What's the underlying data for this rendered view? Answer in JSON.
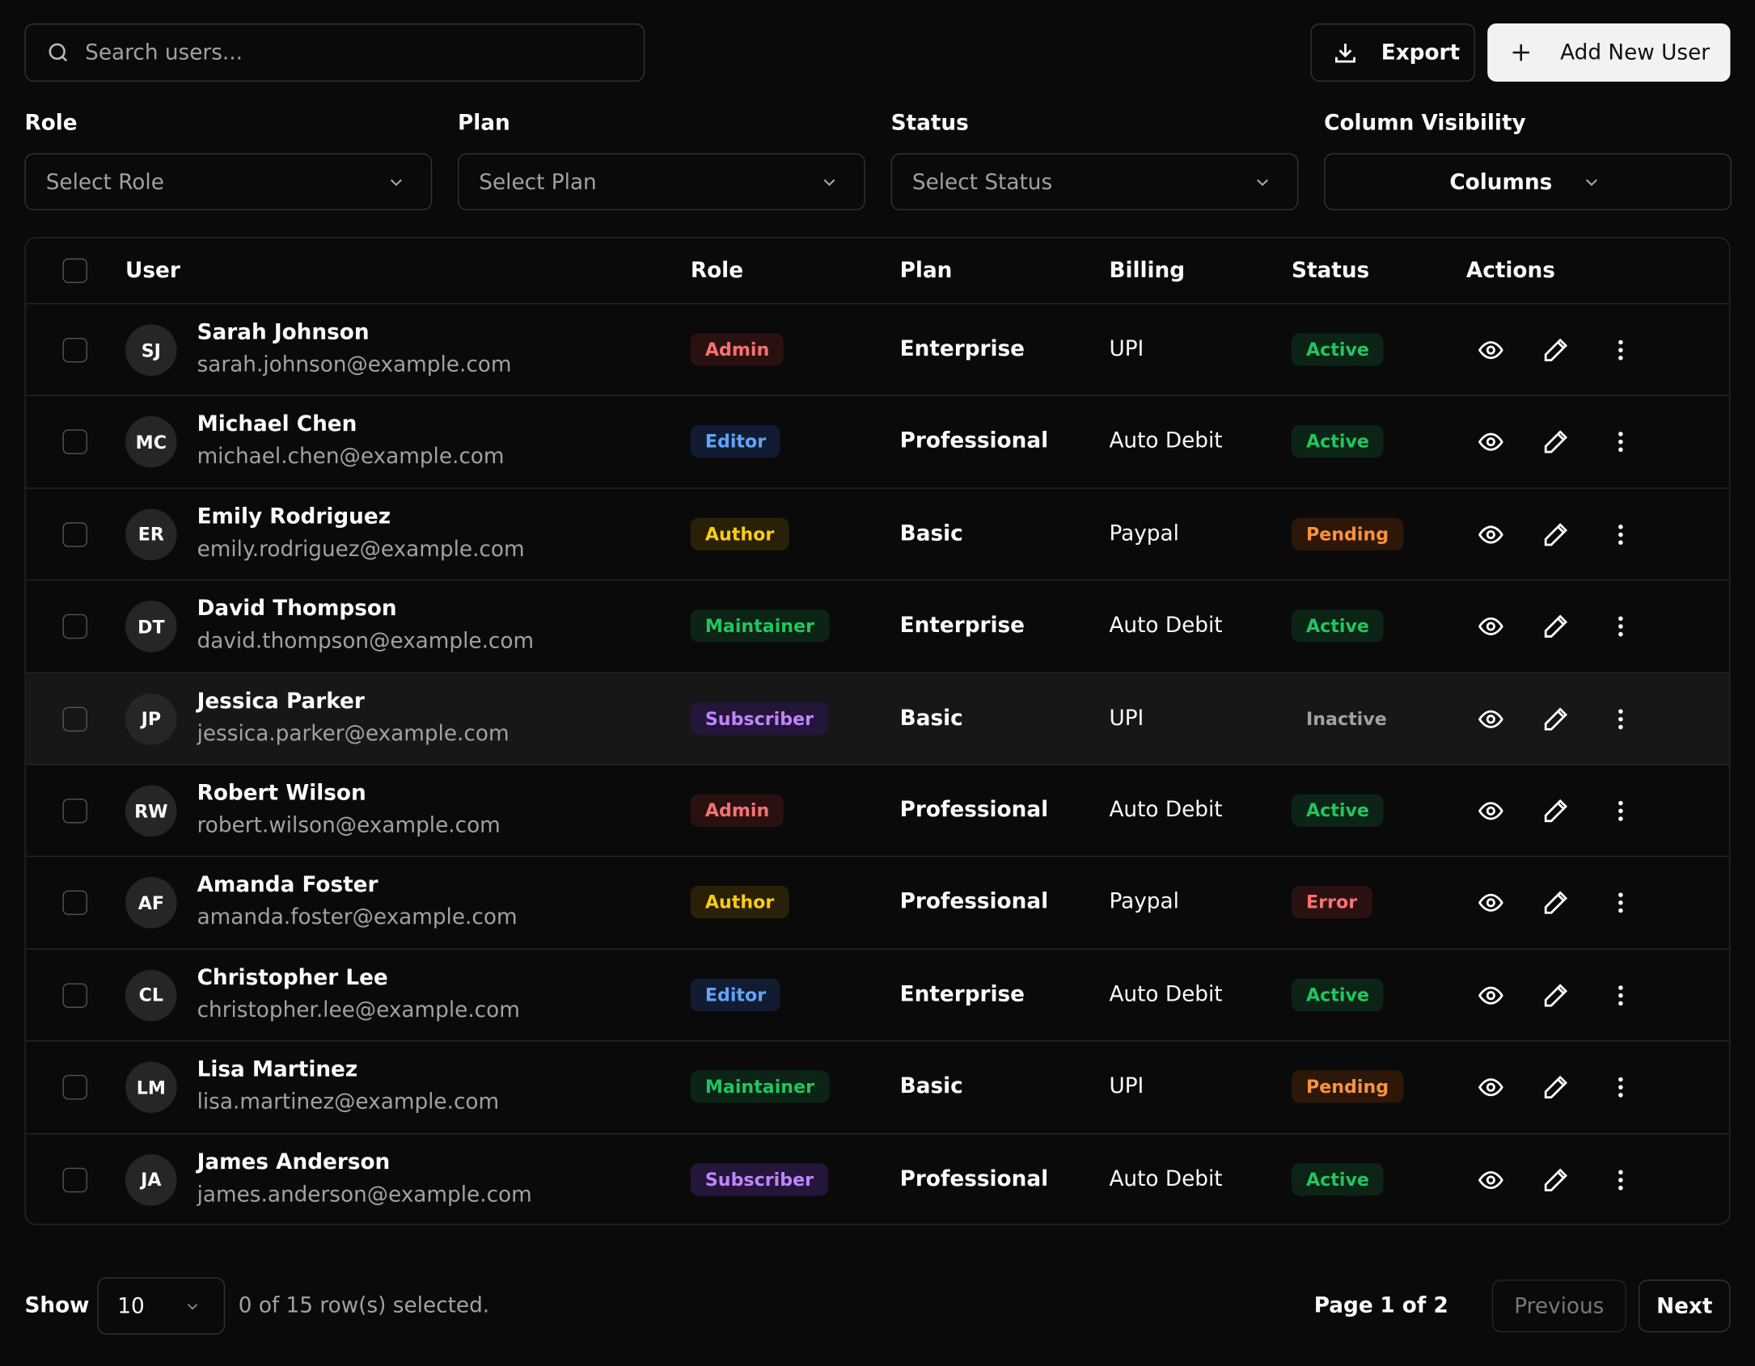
{
  "toolbar": {
    "search_placeholder": "Search users...",
    "export": "Export",
    "add_user": "Add New User"
  },
  "filters": [
    {
      "label": "Role",
      "placeholder": "Select Role"
    },
    {
      "label": "Plan",
      "placeholder": "Select Plan"
    },
    {
      "label": "Status",
      "placeholder": "Select Status"
    },
    {
      "label": "Column Visibility",
      "placeholder": "Columns"
    }
  ],
  "table": {
    "headers": [
      "User",
      "Role",
      "Plan",
      "Billing",
      "Status",
      "Actions"
    ],
    "rows": [
      {
        "initials": "SJ",
        "name": "Sarah Johnson",
        "email": "sarah.johnson@example.com",
        "role": "Admin",
        "plan": "Enterprise",
        "billing": "UPI",
        "status": "Active"
      },
      {
        "initials": "MC",
        "name": "Michael Chen",
        "email": "michael.chen@example.com",
        "role": "Editor",
        "plan": "Professional",
        "billing": "Auto Debit",
        "status": "Active"
      },
      {
        "initials": "ER",
        "name": "Emily Rodriguez",
        "email": "emily.rodriguez@example.com",
        "role": "Author",
        "plan": "Basic",
        "billing": "Paypal",
        "status": "Pending"
      },
      {
        "initials": "DT",
        "name": "David Thompson",
        "email": "david.thompson@example.com",
        "role": "Maintainer",
        "plan": "Enterprise",
        "billing": "Auto Debit",
        "status": "Active"
      },
      {
        "initials": "JP",
        "name": "Jessica Parker",
        "email": "jessica.parker@example.com",
        "role": "Subscriber",
        "plan": "Basic",
        "billing": "UPI",
        "status": "Inactive"
      },
      {
        "initials": "RW",
        "name": "Robert Wilson",
        "email": "robert.wilson@example.com",
        "role": "Admin",
        "plan": "Professional",
        "billing": "Auto Debit",
        "status": "Active"
      },
      {
        "initials": "AF",
        "name": "Amanda Foster",
        "email": "amanda.foster@example.com",
        "role": "Author",
        "plan": "Professional",
        "billing": "Paypal",
        "status": "Error"
      },
      {
        "initials": "CL",
        "name": "Christopher Lee",
        "email": "christopher.lee@example.com",
        "role": "Editor",
        "plan": "Enterprise",
        "billing": "Auto Debit",
        "status": "Active"
      },
      {
        "initials": "LM",
        "name": "Lisa Martinez",
        "email": "lisa.martinez@example.com",
        "role": "Maintainer",
        "plan": "Basic",
        "billing": "UPI",
        "status": "Pending"
      },
      {
        "initials": "JA",
        "name": "James Anderson",
        "email": "james.anderson@example.com",
        "role": "Subscriber",
        "plan": "Professional",
        "billing": "Auto Debit",
        "status": "Active"
      }
    ]
  },
  "footer": {
    "show": "Show",
    "page_size": "10",
    "selection": "0 of 15 row(s) selected.",
    "page_label": "Page",
    "page_value": "1 of 2",
    "previous": "Previous",
    "next": "Next"
  }
}
